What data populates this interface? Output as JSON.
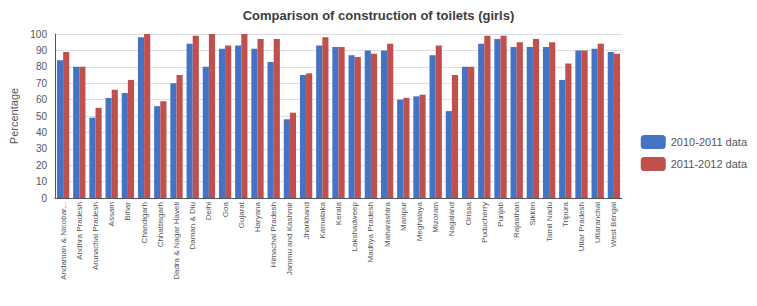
{
  "chart_data": {
    "type": "bar",
    "title": "Comparison of construction of toilets (girls)",
    "ylabel": "Percentage",
    "categories": [
      "Andaman & Nicobar...",
      "Andhra Pradesh",
      "Arunachal Pradesh",
      "Assam",
      "Bihar",
      "Chandigarh",
      "Chhattisgarh",
      "Dadra & Nagar Haveli",
      "Daman & Diu",
      "Delhi",
      "Goa",
      "Gujarat",
      "Haryana",
      "Himachal Pradesh",
      "Jammu and Kashmir",
      "Jharkhand",
      "Karnataka",
      "Kerala",
      "Lakshadweep",
      "Madhya Pradesh",
      "Maharashtra",
      "Manipur",
      "Meghalaya",
      "Mizoram",
      "Nagaland",
      "Orissa",
      "Puducherry",
      "Punjab",
      "Rajasthan",
      "Sikkim",
      "Tamil Nadu",
      "Tripura",
      "Uttar Pradesh",
      "Uttaranchal",
      "West Bengal"
    ],
    "series": [
      {
        "name": "2010-2011 data",
        "color": "#4472C4",
        "values": [
          84,
          80,
          49,
          61,
          64,
          98,
          56,
          70,
          94,
          80,
          91,
          93,
          91,
          83,
          48,
          75,
          93,
          92,
          87,
          90,
          90,
          60,
          62,
          87,
          53,
          80,
          94,
          97,
          92,
          92,
          92,
          72,
          90,
          91,
          89
        ]
      },
      {
        "name": "2011-2012 data",
        "color": "#C0504D",
        "values": [
          89,
          80,
          55,
          66,
          72,
          100,
          59,
          75,
          99,
          100,
          93,
          100,
          97,
          97,
          52,
          76,
          98,
          92,
          86,
          88,
          94,
          61,
          63,
          93,
          75,
          80,
          99,
          99,
          95,
          97,
          95,
          82,
          90,
          94,
          88
        ]
      }
    ],
    "ylim": [
      0,
      100
    ],
    "yticks": [
      0,
      10,
      20,
      30,
      40,
      50,
      60,
      70,
      80,
      90,
      100
    ],
    "grid": true,
    "legend": "right"
  }
}
